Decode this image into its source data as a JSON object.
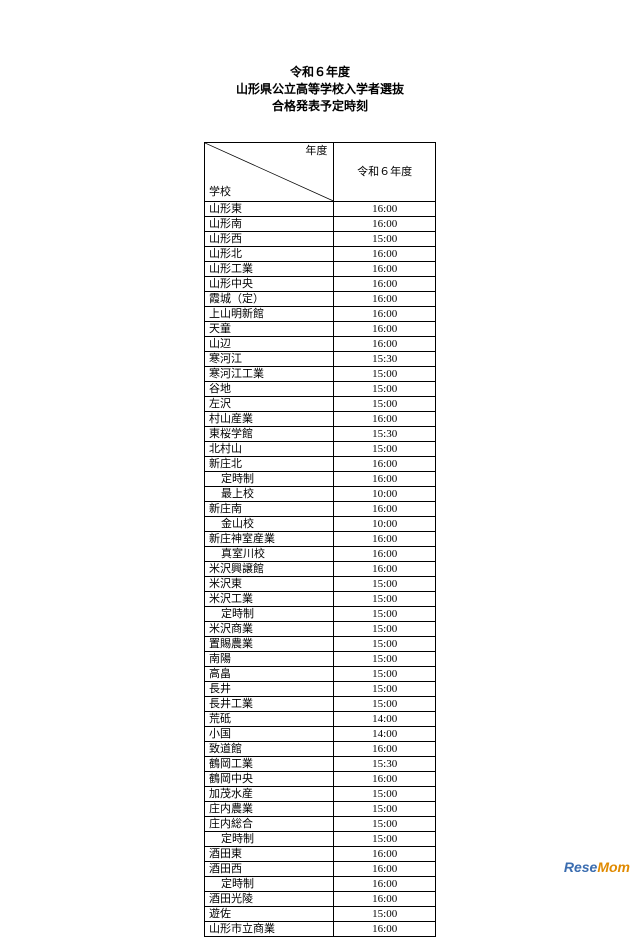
{
  "title_lines": [
    "令和６年度",
    "山形県公立高等学校入学者選抜",
    "合格発表予定時刻"
  ],
  "header": {
    "diag_top": "年度",
    "diag_bottom": "学校",
    "year_col": "令和６年度"
  },
  "rows": [
    {
      "school": "山形東",
      "time": "16:00"
    },
    {
      "school": "山形南",
      "time": "16:00"
    },
    {
      "school": "山形西",
      "time": "15:00"
    },
    {
      "school": "山形北",
      "time": "16:00"
    },
    {
      "school": "山形工業",
      "time": "16:00"
    },
    {
      "school": "山形中央",
      "time": "16:00"
    },
    {
      "school": "霞城（定）",
      "time": "16:00"
    },
    {
      "school": "上山明新館",
      "time": "16:00"
    },
    {
      "school": "天童",
      "time": "16:00"
    },
    {
      "school": "山辺",
      "time": "16:00"
    },
    {
      "school": "寒河江",
      "time": "15:30"
    },
    {
      "school": "寒河江工業",
      "time": "15:00"
    },
    {
      "school": "谷地",
      "time": "15:00"
    },
    {
      "school": "左沢",
      "time": "15:00"
    },
    {
      "school": "村山産業",
      "time": "16:00"
    },
    {
      "school": "東桜学館",
      "time": "15:30"
    },
    {
      "school": "北村山",
      "time": "15:00"
    },
    {
      "school": "新庄北",
      "time": "16:00"
    },
    {
      "school": "定時制",
      "time": "16:00",
      "indent": true
    },
    {
      "school": "最上校",
      "time": "10:00",
      "indent": true
    },
    {
      "school": "新庄南",
      "time": "16:00"
    },
    {
      "school": "金山校",
      "time": "10:00",
      "indent": true
    },
    {
      "school": "新庄神室産業",
      "time": "16:00"
    },
    {
      "school": "真室川校",
      "time": "16:00",
      "indent": true
    },
    {
      "school": "米沢興譲館",
      "time": "16:00"
    },
    {
      "school": "米沢東",
      "time": "15:00"
    },
    {
      "school": "米沢工業",
      "time": "15:00"
    },
    {
      "school": "定時制",
      "time": "15:00",
      "indent": true
    },
    {
      "school": "米沢商業",
      "time": "15:00"
    },
    {
      "school": "置賜農業",
      "time": "15:00"
    },
    {
      "school": "南陽",
      "time": "15:00"
    },
    {
      "school": "高畠",
      "time": "15:00"
    },
    {
      "school": "長井",
      "time": "15:00"
    },
    {
      "school": "長井工業",
      "time": "15:00"
    },
    {
      "school": "荒砥",
      "time": "14:00"
    },
    {
      "school": "小国",
      "time": "14:00"
    },
    {
      "school": "致道館",
      "time": "16:00"
    },
    {
      "school": "鶴岡工業",
      "time": "15:30"
    },
    {
      "school": "鶴岡中央",
      "time": "16:00"
    },
    {
      "school": "加茂水産",
      "time": "15:00"
    },
    {
      "school": "庄内農業",
      "time": "15:00"
    },
    {
      "school": "庄内総合",
      "time": "15:00"
    },
    {
      "school": "定時制",
      "time": "15:00",
      "indent": true
    },
    {
      "school": "酒田東",
      "time": "16:00"
    },
    {
      "school": "酒田西",
      "time": "16:00"
    },
    {
      "school": "定時制",
      "time": "16:00",
      "indent": true
    },
    {
      "school": "酒田光陵",
      "time": "16:00"
    },
    {
      "school": "遊佐",
      "time": "15:00"
    },
    {
      "school": "山形市立商業",
      "time": "16:00"
    }
  ],
  "watermark": {
    "part1": "Rese",
    "part2": "Mom"
  }
}
